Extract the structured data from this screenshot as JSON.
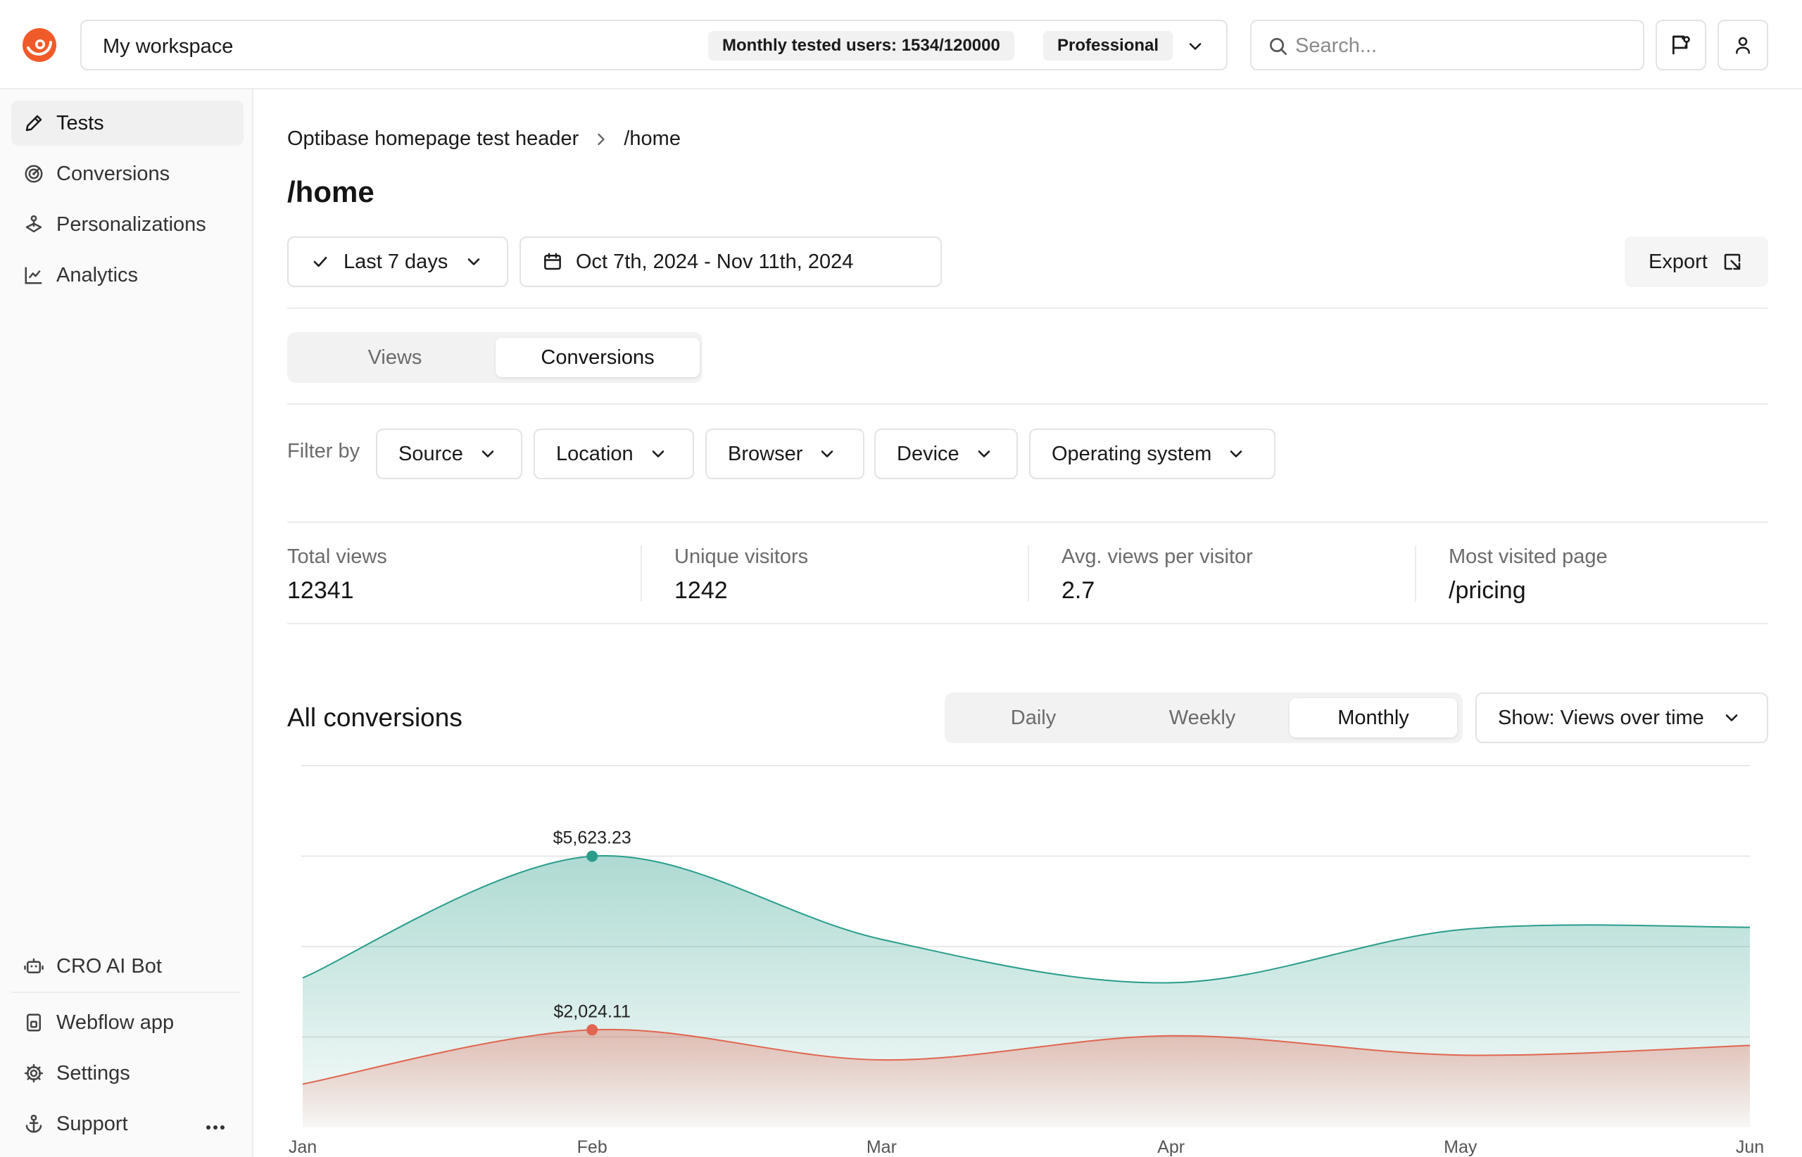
{
  "topbar": {
    "workspace_name": "My workspace",
    "users_badge": "Monthly tested users: 1534/120000",
    "plan_badge": "Professional",
    "search_placeholder": "Search..."
  },
  "sidebar": {
    "items": [
      {
        "label": "Tests",
        "icon": "pencil-icon"
      },
      {
        "label": "Conversions",
        "icon": "target-icon"
      },
      {
        "label": "Personalizations",
        "icon": "joystick-icon"
      },
      {
        "label": "Analytics",
        "icon": "line-chart-icon"
      }
    ],
    "bottom_items": [
      {
        "label": "CRO AI Bot",
        "icon": "bot-icon"
      },
      {
        "label": "Webflow app",
        "icon": "app-icon"
      },
      {
        "label": "Settings",
        "icon": "gear-icon"
      },
      {
        "label": "Support",
        "icon": "anchor-icon"
      }
    ]
  },
  "breadcrumb": {
    "parent": "Optibase homepage test header",
    "current": "/home"
  },
  "page_title": "/home",
  "toolbar": {
    "range_label": "Last 7 days",
    "date_range": "Oct 7th, 2024 - Nov 11th, 2024",
    "export_label": "Export"
  },
  "view_tabs": {
    "views": "Views",
    "conversions": "Conversions",
    "selected": "Conversions"
  },
  "filters": {
    "label": "Filter by",
    "source": "Source",
    "location": "Location",
    "browser": "Browser",
    "device": "Device",
    "os": "Operating system"
  },
  "stats": [
    {
      "label": "Total views",
      "value": "12341"
    },
    {
      "label": "Unique visitors",
      "value": "1242"
    },
    {
      "label": "Avg. views per visitor",
      "value": "2.7"
    },
    {
      "label": "Most visited page",
      "value": "/pricing"
    }
  ],
  "conversions": {
    "title": "All conversions",
    "periods": {
      "daily": "Daily",
      "weekly": "Weekly",
      "monthly": "Monthly",
      "selected": "Monthly"
    },
    "show_label": "Show: Views over time"
  },
  "colors": {
    "brand": "#f05a28",
    "teal": "#2a9d8a",
    "coral": "#e06650"
  },
  "chart_data": {
    "type": "area",
    "x": [
      "Jan",
      "Feb",
      "Mar",
      "Apr",
      "May",
      "Jun"
    ],
    "ylim": [
      0,
      7500
    ],
    "grid": true,
    "series": [
      {
        "color": "#2a9d8a",
        "values": [
          3100,
          5623.23,
          3900,
          3000,
          4100,
          4150
        ],
        "annotation": {
          "index": 1,
          "text": "$5,623.23"
        }
      },
      {
        "color": "#e06650",
        "values": [
          900,
          2024.11,
          1400,
          1900,
          1500,
          1700
        ],
        "annotation": {
          "index": 1,
          "text": "$2,024.11"
        }
      }
    ]
  }
}
